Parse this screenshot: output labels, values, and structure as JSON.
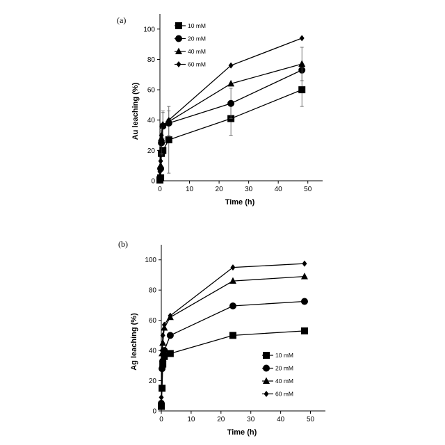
{
  "chart_data": [
    {
      "type": "line",
      "panel_label": "(a)",
      "xlabel": "Time (h)",
      "ylabel": "Au leaching (%)",
      "xlim": [
        0,
        55
      ],
      "ylim": [
        0,
        110
      ],
      "xticks": [
        "0",
        "10",
        "20",
        "30",
        "40",
        "50"
      ],
      "yticks": [
        "0",
        "20",
        "40",
        "60",
        "80",
        "100"
      ],
      "grid": false,
      "legend_position": "top-left",
      "series": [
        {
          "name": "10 mM",
          "marker": "square",
          "x": [
            0,
            0.25,
            0.5,
            1,
            3,
            24,
            48
          ],
          "y": [
            0.5,
            2,
            18,
            20,
            27,
            41,
            60
          ],
          "err": [
            0,
            0,
            0,
            0,
            22,
            11,
            11
          ]
        },
        {
          "name": "20 mM",
          "marker": "circle",
          "x": [
            0,
            0.25,
            0.5,
            1,
            3,
            24,
            48
          ],
          "y": [
            2,
            8,
            25,
            36,
            38,
            51,
            73
          ],
          "err": [
            0,
            0,
            8,
            9,
            8,
            10,
            0
          ]
        },
        {
          "name": "40 mM",
          "marker": "triangle",
          "x": [
            0,
            0.25,
            0.5,
            1,
            3,
            24,
            48
          ],
          "y": [
            3,
            10,
            28,
            37,
            39,
            64,
            77
          ],
          "err": [
            0,
            0,
            10,
            9,
            0,
            0,
            11
          ]
        },
        {
          "name": "60 mM",
          "marker": "diamond",
          "x": [
            0,
            0.25,
            0.5,
            1,
            3,
            24,
            48
          ],
          "y": [
            6,
            13,
            30,
            36,
            40,
            76,
            94
          ],
          "err": [
            0,
            0,
            0,
            0,
            0,
            0,
            0
          ]
        }
      ]
    },
    {
      "type": "line",
      "panel_label": "(b)",
      "xlabel": "Time (h)",
      "ylabel": "Ag leaching (%)",
      "xlim": [
        0,
        55
      ],
      "ylim": [
        0,
        110
      ],
      "xticks": [
        "0",
        "10",
        "20",
        "30",
        "40",
        "50"
      ],
      "yticks": [
        "0",
        "20",
        "40",
        "60",
        "80",
        "100"
      ],
      "grid": false,
      "legend_position": "bottom-right",
      "series": [
        {
          "name": "10 mM",
          "marker": "square",
          "x": [
            0,
            0.25,
            0.5,
            1,
            3,
            24,
            48
          ],
          "y": [
            3,
            15,
            31,
            36,
            38,
            50,
            53
          ]
        },
        {
          "name": "20 mM",
          "marker": "circle",
          "x": [
            0,
            0.25,
            0.5,
            1,
            3,
            24,
            48
          ],
          "y": [
            5,
            28,
            33,
            40,
            50,
            69.5,
            72.5
          ]
        },
        {
          "name": "40 mM",
          "marker": "triangle",
          "x": [
            0,
            0.25,
            0.5,
            1,
            3,
            24,
            48
          ],
          "y": [
            6,
            38,
            45,
            55,
            62,
            86,
            89
          ]
        },
        {
          "name": "60 mM",
          "marker": "diamond",
          "x": [
            0,
            0.25,
            0.5,
            1,
            3,
            24,
            48
          ],
          "y": [
            9,
            40,
            50,
            57,
            63,
            95,
            97.5
          ]
        }
      ]
    }
  ]
}
